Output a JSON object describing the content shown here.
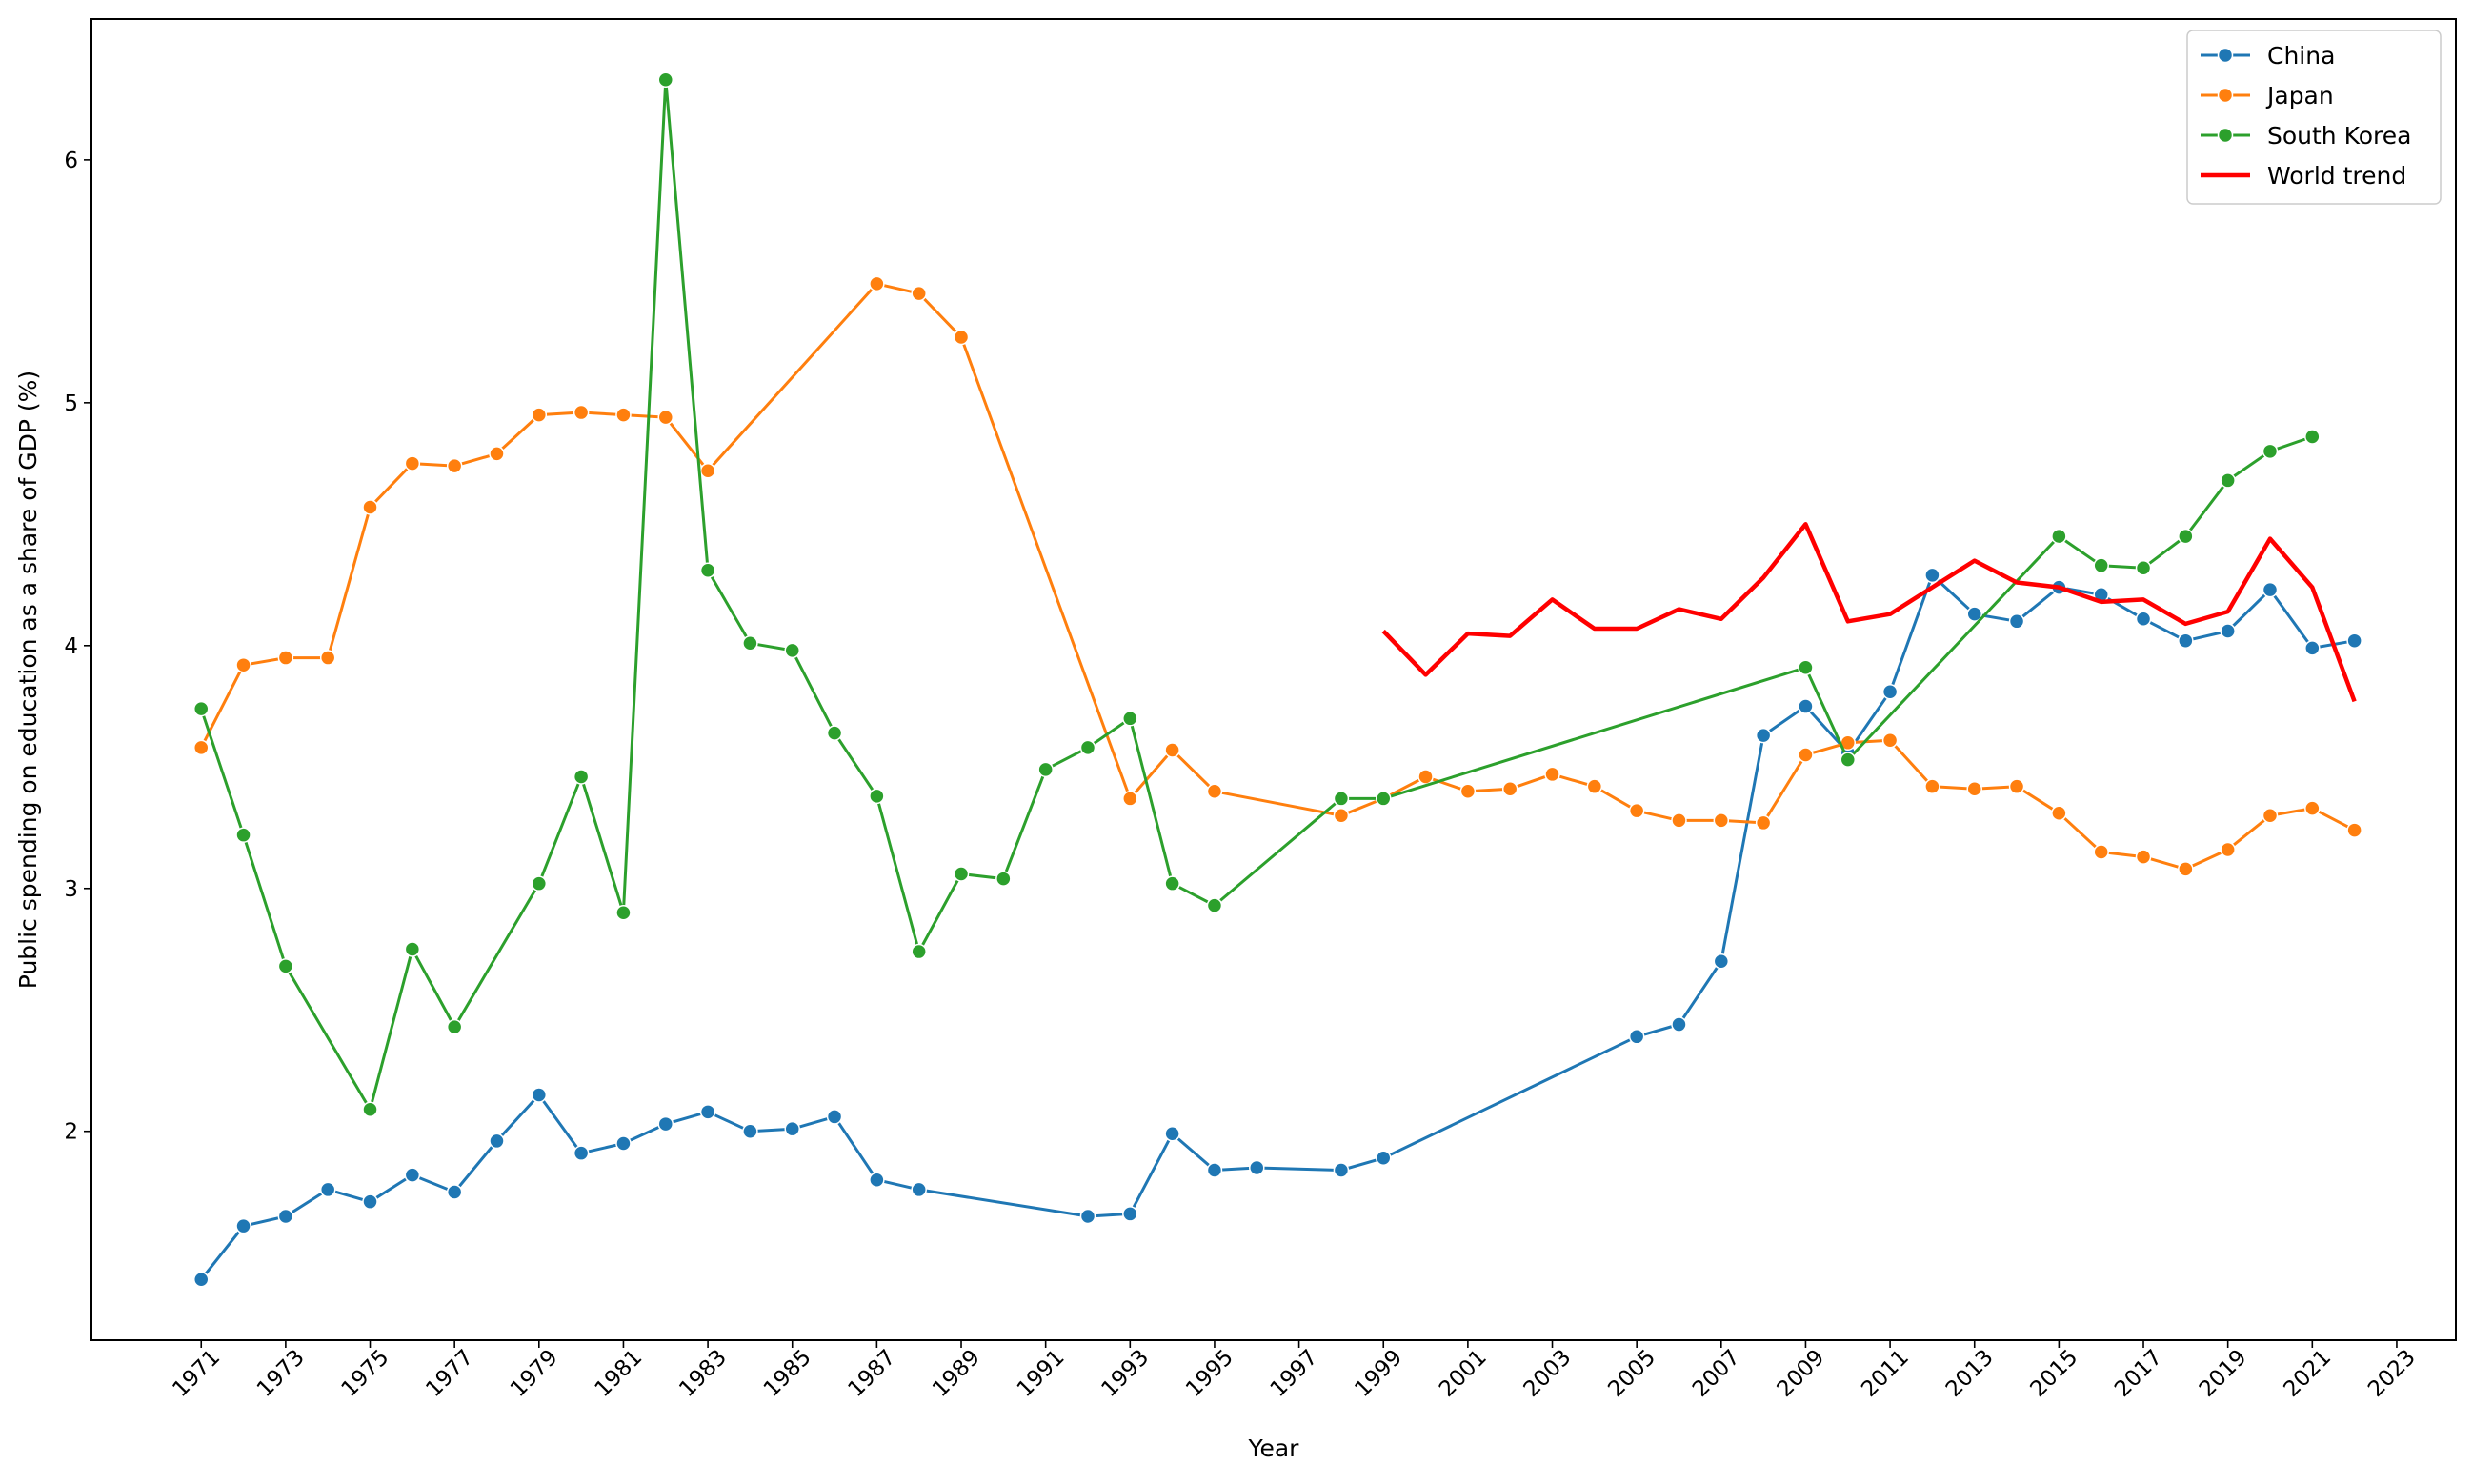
{
  "chart_data": {
    "type": "line",
    "xlabel": "Year",
    "ylabel": "Public spending on education as a share of GDP (%)",
    "xlim": [
      1968.4,
      2024.4
    ],
    "ylim": [
      1.14,
      6.58
    ],
    "x_ticks": [
      1971,
      1973,
      1975,
      1977,
      1979,
      1981,
      1983,
      1985,
      1987,
      1989,
      1991,
      1993,
      1995,
      1997,
      1999,
      2001,
      2003,
      2005,
      2007,
      2009,
      2011,
      2013,
      2015,
      2017,
      2019,
      2021,
      2023
    ],
    "x_tick_labels": [
      "1971",
      "1973",
      "1975",
      "1977",
      "1979",
      "1981",
      "1983",
      "1985",
      "1987",
      "1989",
      "1991",
      "1993",
      "1995",
      "1997",
      "1999",
      "2001",
      "2003",
      "2005",
      "2007",
      "2009",
      "2011",
      "2013",
      "2015",
      "2017",
      "2019",
      "2021",
      "2023"
    ],
    "y_ticks": [
      2,
      3,
      4,
      5,
      6
    ],
    "y_tick_labels": [
      "2",
      "3",
      "4",
      "5",
      "6"
    ],
    "grid": false,
    "legend_position": "top-right",
    "series": [
      {
        "name": "China",
        "color": "#1f77b4",
        "markers": true,
        "x": [
          1971,
          1972,
          1973,
          1974,
          1975,
          1976,
          1977,
          1978,
          1979,
          1980,
          1981,
          1982,
          1983,
          1984,
          1985,
          1986,
          1987,
          1988,
          1992,
          1993,
          1994,
          1995,
          1996,
          1998,
          1999,
          2005,
          2006,
          2007,
          2008,
          2009,
          2010,
          2011,
          2012,
          2013,
          2014,
          2015,
          2016,
          2017,
          2018,
          2019,
          2020,
          2021,
          2022
        ],
        "y": [
          1.39,
          1.61,
          1.65,
          1.76,
          1.71,
          1.82,
          1.75,
          1.96,
          2.15,
          1.91,
          1.95,
          2.03,
          2.08,
          2.0,
          2.01,
          2.06,
          1.8,
          1.76,
          1.65,
          1.66,
          1.99,
          1.84,
          1.85,
          1.84,
          1.89,
          2.39,
          2.44,
          2.7,
          3.63,
          3.75,
          3.56,
          3.81,
          4.29,
          4.13,
          4.1,
          4.24,
          4.21,
          4.11,
          4.02,
          4.06,
          4.23,
          3.99,
          4.02
        ]
      },
      {
        "name": "Japan",
        "color": "#ff7f0e",
        "markers": true,
        "x": [
          1971,
          1972,
          1973,
          1974,
          1975,
          1976,
          1977,
          1978,
          1979,
          1980,
          1981,
          1982,
          1983,
          1987,
          1988,
          1989,
          1993,
          1994,
          1995,
          1998,
          1999,
          2000,
          2001,
          2002,
          2003,
          2004,
          2005,
          2006,
          2007,
          2008,
          2009,
          2010,
          2011,
          2012,
          2013,
          2014,
          2015,
          2016,
          2017,
          2018,
          2019,
          2020,
          2021,
          2022
        ],
        "y": [
          3.58,
          3.92,
          3.95,
          3.95,
          4.57,
          4.75,
          4.74,
          4.79,
          4.95,
          4.96,
          4.95,
          4.94,
          4.72,
          5.49,
          5.45,
          5.27,
          3.37,
          3.57,
          3.4,
          3.3,
          3.37,
          3.46,
          3.4,
          3.41,
          3.47,
          3.42,
          3.32,
          3.28,
          3.28,
          3.27,
          3.55,
          3.6,
          3.61,
          3.42,
          3.41,
          3.42,
          3.31,
          3.15,
          3.13,
          3.08,
          3.16,
          3.3,
          3.33,
          3.24
        ]
      },
      {
        "name": "South Korea",
        "color": "#2ca02c",
        "markers": true,
        "x": [
          1971,
          1972,
          1973,
          1975,
          1976,
          1977,
          1979,
          1980,
          1981,
          1982,
          1983,
          1984,
          1985,
          1986,
          1987,
          1988,
          1989,
          1990,
          1991,
          1992,
          1993,
          1994,
          1995,
          1998,
          1999,
          2009,
          2010,
          2015,
          2016,
          2017,
          2018,
          2019,
          2020,
          2021
        ],
        "y": [
          3.74,
          3.22,
          2.68,
          2.09,
          2.75,
          2.43,
          3.02,
          3.46,
          2.9,
          6.33,
          4.31,
          4.01,
          3.98,
          3.64,
          3.38,
          2.74,
          3.06,
          3.04,
          3.49,
          3.58,
          3.7,
          3.02,
          2.93,
          3.37,
          3.37,
          3.91,
          3.53,
          4.45,
          4.33,
          4.32,
          4.45,
          4.68,
          4.8,
          4.86
        ]
      },
      {
        "name": "World trend",
        "color": "#ff0000",
        "markers": false,
        "x": [
          1999,
          2000,
          2001,
          2002,
          2003,
          2004,
          2005,
          2006,
          2007,
          2008,
          2009,
          2010,
          2011,
          2012,
          2013,
          2014,
          2015,
          2016,
          2017,
          2018,
          2019,
          2020,
          2021,
          2022
        ],
        "y": [
          4.06,
          3.88,
          4.05,
          4.04,
          4.19,
          4.07,
          4.07,
          4.15,
          4.11,
          4.28,
          4.5,
          4.1,
          4.13,
          4.24,
          4.35,
          4.26,
          4.24,
          4.18,
          4.19,
          4.09,
          4.14,
          4.44,
          4.24,
          3.77
        ]
      }
    ]
  }
}
